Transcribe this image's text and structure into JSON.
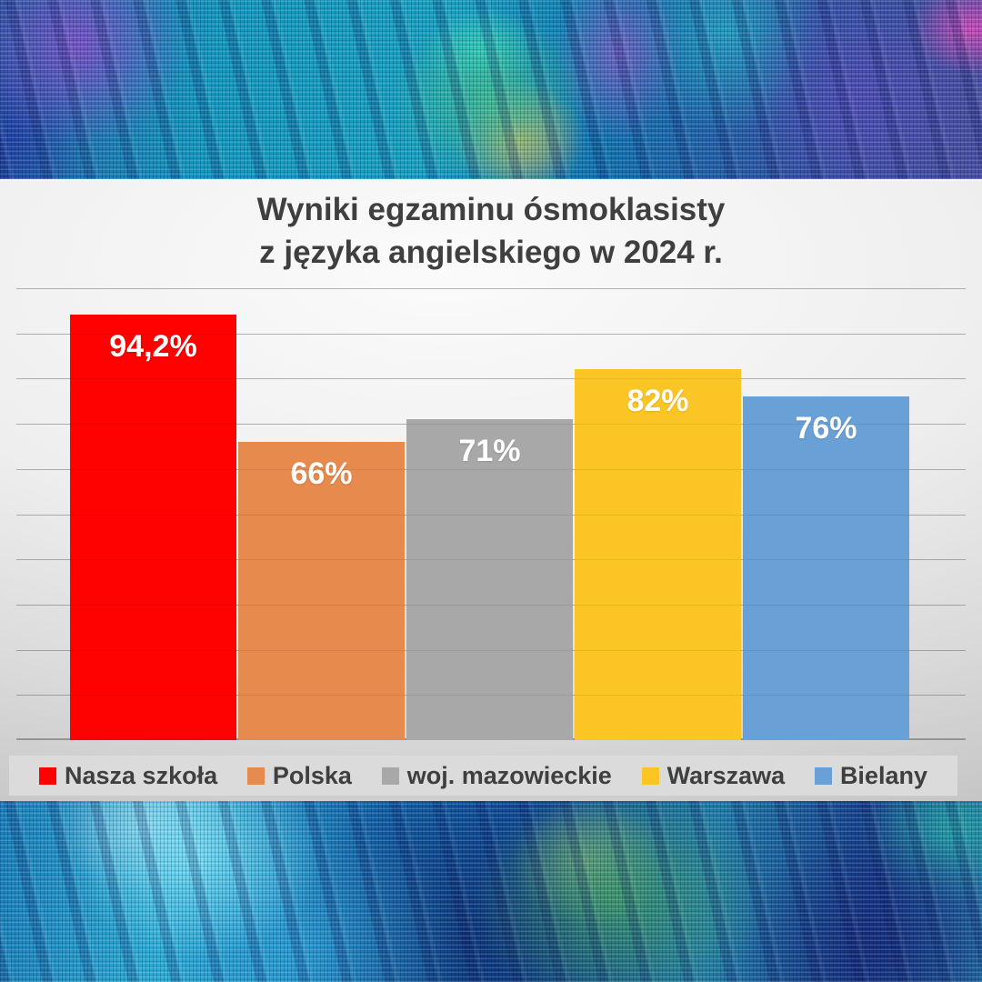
{
  "title": {
    "line1": "Wyniki egzaminu ósmoklasisty",
    "line2": "z języka angielskiego w 2024 r."
  },
  "chart_data": {
    "type": "bar",
    "title": "Wyniki egzaminu ósmoklasisty z języka angielskiego w 2024 r.",
    "categories": [
      "Nasza szkoła",
      "Polska",
      "woj. mazowieckie",
      "Warszawa",
      "Bielany"
    ],
    "values": [
      94.2,
      66,
      71,
      82,
      76
    ],
    "value_labels": [
      "94,2%",
      "66%",
      "71%",
      "82%",
      "76%"
    ],
    "colors": [
      "#fe0101",
      "#e78a4e",
      "#a8a8a8",
      "#fcc526",
      "#69a0d5"
    ],
    "xlabel": "",
    "ylabel": "",
    "ylim": [
      0,
      100
    ],
    "grid_interval": 10,
    "grid": true,
    "legend_position": "bottom",
    "label_color": "#ffffff",
    "text_color": "#3f3f3f"
  }
}
